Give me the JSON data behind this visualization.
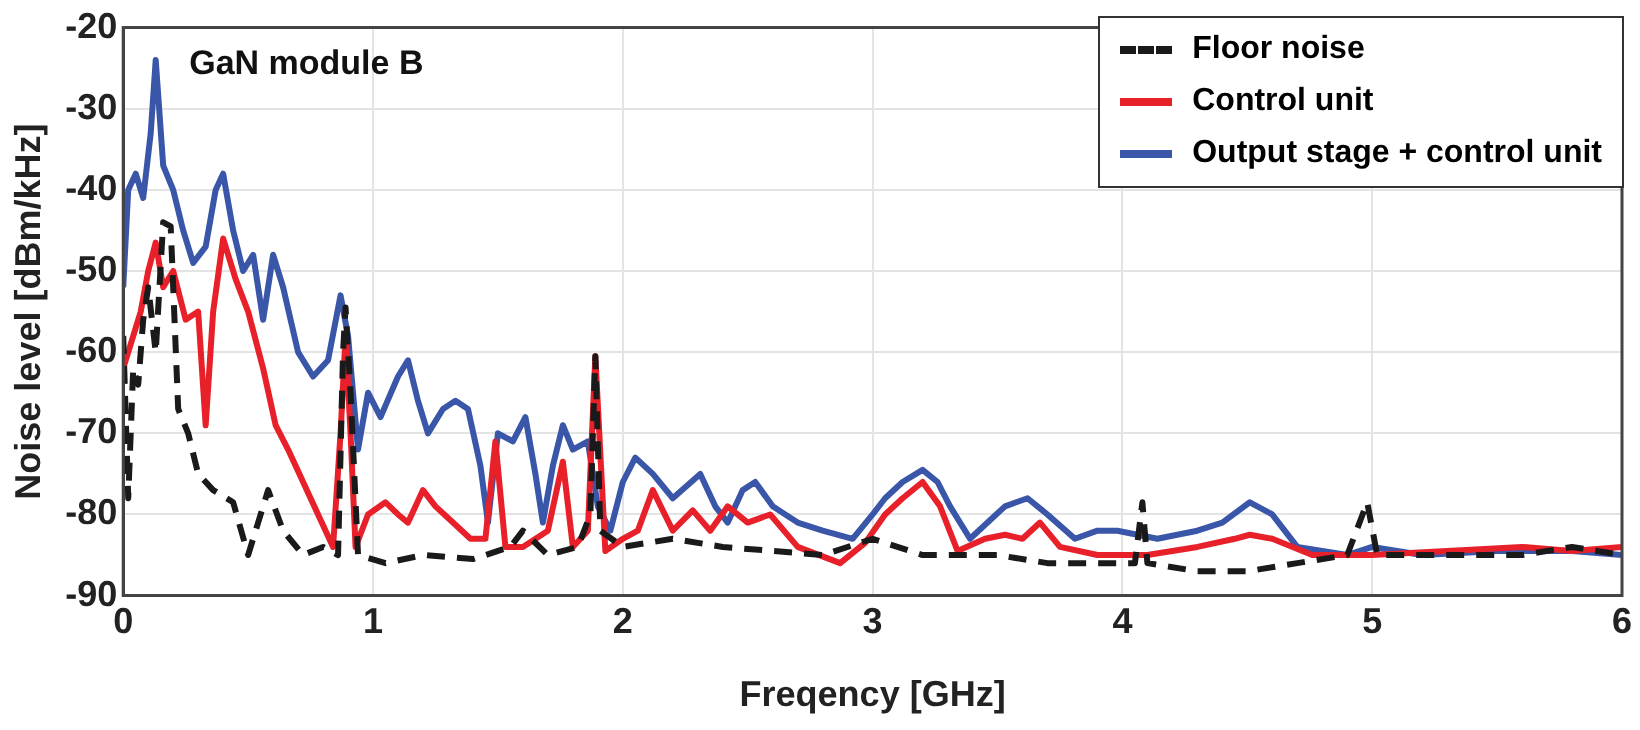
{
  "chart_data": {
    "type": "line",
    "xlabel": "Freqency [GHz]",
    "ylabel": "Noise level [dBm/kHz]",
    "annotations": [
      "GaN module B"
    ],
    "xlim": [
      0,
      6
    ],
    "xticks": [
      0,
      1,
      2,
      3,
      4,
      5,
      6
    ],
    "ylim": [
      -90,
      -20
    ],
    "yticks": [
      -90,
      -80,
      -70,
      -60,
      -50,
      -40,
      -30,
      -20
    ],
    "grid": true,
    "legend": "top right",
    "marker": "none",
    "series": [
      {
        "name": "Floor noise",
        "color": "#1a1a1a",
        "line_style": "dashed",
        "x": [
          0,
          0.02,
          0.04,
          0.06,
          0.08,
          0.1,
          0.13,
          0.16,
          0.19,
          0.22,
          0.26,
          0.3,
          0.36,
          0.44,
          0.5,
          0.54,
          0.58,
          0.64,
          0.72,
          0.8,
          0.86,
          0.88,
          0.89,
          0.91,
          0.94,
          1.05,
          1.2,
          1.4,
          1.55,
          1.6,
          1.7,
          1.82,
          1.87,
          1.89,
          1.91,
          2.0,
          2.2,
          2.4,
          2.6,
          2.8,
          3.0,
          3.2,
          3.5,
          3.7,
          3.9,
          4.05,
          4.08,
          4.1,
          4.3,
          4.5,
          4.7,
          4.9,
          4.98,
          5.02,
          5.3,
          5.6,
          5.8,
          6.0
        ],
        "values": [
          -58,
          -78,
          -62,
          -64,
          -56,
          -52,
          -60,
          -44,
          -44.5,
          -67,
          -70,
          -75,
          -77,
          -78.5,
          -85,
          -81,
          -77,
          -82,
          -85,
          -84,
          -85,
          -60,
          -54.5,
          -65,
          -85,
          -86,
          -85,
          -85.5,
          -84,
          -82,
          -85,
          -84,
          -80,
          -60.5,
          -82,
          -84,
          -83,
          -84,
          -84.5,
          -85,
          -83,
          -85,
          -85,
          -86,
          -86,
          -86,
          -78.5,
          -86,
          -87,
          -87,
          -86,
          -85,
          -78.5,
          -85,
          -85,
          -85,
          -84,
          -85
        ]
      },
      {
        "name": "Control unit",
        "color": "#e8202a",
        "line_style": "solid",
        "x": [
          0,
          0.03,
          0.07,
          0.1,
          0.13,
          0.16,
          0.2,
          0.25,
          0.3,
          0.33,
          0.36,
          0.4,
          0.45,
          0.5,
          0.56,
          0.61,
          0.66,
          0.72,
          0.78,
          0.84,
          0.87,
          0.89,
          0.91,
          0.93,
          0.98,
          1.05,
          1.1,
          1.14,
          1.2,
          1.25,
          1.32,
          1.39,
          1.45,
          1.49,
          1.53,
          1.6,
          1.7,
          1.76,
          1.8,
          1.86,
          1.89,
          1.93,
          2.0,
          2.06,
          2.12,
          2.2,
          2.28,
          2.35,
          2.42,
          2.5,
          2.59,
          2.7,
          2.87,
          2.97,
          3.05,
          3.12,
          3.2,
          3.27,
          3.34,
          3.45,
          3.53,
          3.6,
          3.67,
          3.75,
          3.9,
          4.1,
          4.3,
          4.45,
          4.51,
          4.6,
          4.76,
          5.0,
          5.3,
          5.6,
          5.8,
          6.0
        ],
        "values": [
          -62,
          -59,
          -55,
          -50,
          -46.5,
          -52,
          -50,
          -56,
          -55,
          -69,
          -55,
          -46,
          -51,
          -55,
          -62,
          -69,
          -72,
          -76,
          -80,
          -84,
          -70,
          -58,
          -70,
          -84,
          -80,
          -78.5,
          -80,
          -81,
          -77,
          -79,
          -81,
          -83,
          -83,
          -71,
          -84,
          -84,
          -82,
          -73.5,
          -84,
          -82,
          -60.5,
          -84.5,
          -83,
          -82,
          -77,
          -82,
          -79.5,
          -82,
          -79,
          -81,
          -80,
          -84,
          -86,
          -83.5,
          -80,
          -78,
          -76,
          -79,
          -84.5,
          -83,
          -82.5,
          -83,
          -81,
          -84,
          -85,
          -85,
          -84,
          -83,
          -82.5,
          -83,
          -85,
          -85,
          -84.5,
          -84,
          -84.5,
          -84
        ]
      },
      {
        "name": "Output stage + control unit",
        "color": "#3a56a8",
        "line_style": "solid",
        "x": [
          0,
          0.02,
          0.05,
          0.08,
          0.11,
          0.13,
          0.16,
          0.2,
          0.24,
          0.28,
          0.33,
          0.37,
          0.4,
          0.44,
          0.48,
          0.52,
          0.56,
          0.6,
          0.64,
          0.7,
          0.76,
          0.82,
          0.87,
          0.9,
          0.94,
          0.98,
          1.03,
          1.1,
          1.14,
          1.18,
          1.22,
          1.28,
          1.33,
          1.38,
          1.43,
          1.46,
          1.5,
          1.56,
          1.61,
          1.65,
          1.68,
          1.72,
          1.76,
          1.8,
          1.86,
          1.9,
          1.95,
          2.0,
          2.05,
          2.12,
          2.2,
          2.31,
          2.37,
          2.42,
          2.48,
          2.53,
          2.6,
          2.7,
          2.8,
          2.92,
          3.0,
          3.05,
          3.12,
          3.2,
          3.26,
          3.31,
          3.39,
          3.46,
          3.53,
          3.62,
          3.7,
          3.81,
          3.9,
          3.98,
          4.14,
          4.3,
          4.4,
          4.51,
          4.6,
          4.7,
          4.9,
          5.0,
          5.2,
          5.5,
          5.8,
          6.0
        ],
        "values": [
          -52,
          -40,
          -38,
          -41,
          -33,
          -24,
          -37,
          -40,
          -45,
          -49,
          -47,
          -40,
          -38,
          -45,
          -50,
          -48,
          -56,
          -48,
          -52,
          -60,
          -63,
          -61,
          -53,
          -58,
          -72,
          -65,
          -68,
          -63,
          -61,
          -66,
          -70,
          -67,
          -66,
          -67,
          -74,
          -81,
          -70,
          -71,
          -68,
          -75,
          -81,
          -74,
          -69,
          -72,
          -71,
          -79,
          -82,
          -76,
          -73,
          -75,
          -78,
          -75,
          -79,
          -81,
          -77,
          -76,
          -79,
          -81,
          -82,
          -83,
          -80,
          -78,
          -76,
          -74.5,
          -76,
          -79,
          -83,
          -81,
          -79,
          -78,
          -80,
          -83,
          -82,
          -82,
          -83,
          -82,
          -81,
          -78.5,
          -80,
          -84,
          -85,
          -84,
          -85,
          -84.5,
          -84.5,
          -85
        ]
      }
    ]
  }
}
